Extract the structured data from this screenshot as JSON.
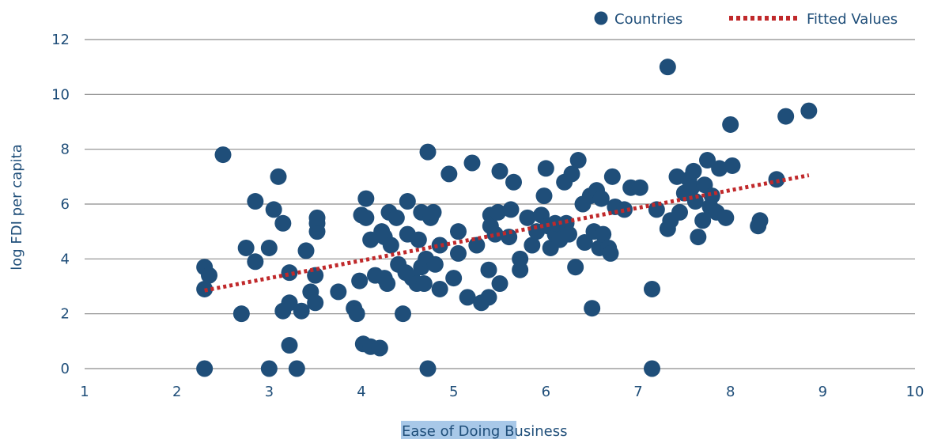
{
  "chart_data": {
    "type": "scatter",
    "title": "",
    "xlabel": "Ease of Doing Business",
    "ylabel": "log FDI per capita",
    "xlim": [
      1,
      10
    ],
    "ylim": [
      0,
      12
    ],
    "xticks": [
      "1",
      "2",
      "3",
      "4",
      "5",
      "6",
      "7",
      "8",
      "9",
      "10"
    ],
    "yticks": [
      "0",
      "2",
      "4",
      "6",
      "8",
      "10",
      "12"
    ],
    "grid": "horizontal",
    "legend_position": "top-right",
    "colors": {
      "points": "#1f4e79",
      "fit": "#c0292b",
      "grid": "#8c8c8c",
      "text": "#1f4e79",
      "highlight": "#a8c8e8"
    },
    "series": [
      {
        "name": "Countries",
        "points": [
          [
            2.3,
            0.0
          ],
          [
            2.3,
            2.9
          ],
          [
            2.3,
            3.7
          ],
          [
            2.35,
            3.4
          ],
          [
            2.5,
            7.8
          ],
          [
            2.7,
            2.0
          ],
          [
            2.75,
            4.4
          ],
          [
            2.85,
            3.9
          ],
          [
            2.85,
            6.1
          ],
          [
            3.0,
            0.0
          ],
          [
            3.0,
            4.4
          ],
          [
            3.05,
            5.8
          ],
          [
            3.1,
            7.0
          ],
          [
            3.15,
            5.3
          ],
          [
            3.15,
            2.1
          ],
          [
            3.22,
            2.4
          ],
          [
            3.22,
            3.5
          ],
          [
            3.22,
            0.85
          ],
          [
            3.3,
            0.0
          ],
          [
            3.35,
            2.1
          ],
          [
            3.4,
            4.3
          ],
          [
            3.45,
            2.8
          ],
          [
            3.5,
            3.4
          ],
          [
            3.5,
            2.4
          ],
          [
            3.52,
            5.0
          ],
          [
            3.52,
            5.3
          ],
          [
            3.52,
            5.5
          ],
          [
            3.75,
            2.8
          ],
          [
            3.92,
            2.2
          ],
          [
            3.95,
            2.0
          ],
          [
            3.98,
            3.2
          ],
          [
            4.0,
            5.6
          ],
          [
            4.02,
            0.9
          ],
          [
            4.05,
            6.2
          ],
          [
            4.05,
            5.5
          ],
          [
            4.1,
            0.8
          ],
          [
            4.1,
            4.7
          ],
          [
            4.15,
            3.4
          ],
          [
            4.2,
            0.75
          ],
          [
            4.22,
            5.0
          ],
          [
            4.25,
            4.8
          ],
          [
            4.25,
            3.3
          ],
          [
            4.28,
            3.1
          ],
          [
            4.3,
            5.7
          ],
          [
            4.32,
            4.5
          ],
          [
            4.38,
            5.5
          ],
          [
            4.4,
            3.8
          ],
          [
            4.45,
            2.0
          ],
          [
            4.48,
            3.5
          ],
          [
            4.5,
            4.9
          ],
          [
            4.5,
            6.1
          ],
          [
            4.55,
            3.3
          ],
          [
            4.6,
            3.1
          ],
          [
            4.62,
            4.7
          ],
          [
            4.65,
            3.7
          ],
          [
            4.65,
            5.7
          ],
          [
            4.68,
            3.1
          ],
          [
            4.7,
            4.0
          ],
          [
            4.72,
            0.0
          ],
          [
            4.72,
            7.9
          ],
          [
            4.75,
            5.5
          ],
          [
            4.78,
            5.7
          ],
          [
            4.8,
            3.8
          ],
          [
            4.85,
            2.9
          ],
          [
            4.85,
            4.5
          ],
          [
            4.95,
            7.1
          ],
          [
            5.0,
            3.3
          ],
          [
            5.05,
            5.0
          ],
          [
            5.05,
            4.2
          ],
          [
            5.15,
            2.6
          ],
          [
            5.2,
            7.5
          ],
          [
            5.25,
            4.5
          ],
          [
            5.3,
            2.4
          ],
          [
            5.38,
            2.6
          ],
          [
            5.38,
            3.6
          ],
          [
            5.4,
            5.6
          ],
          [
            5.4,
            5.2
          ],
          [
            5.45,
            4.9
          ],
          [
            5.48,
            5.7
          ],
          [
            5.5,
            3.1
          ],
          [
            5.5,
            7.2
          ],
          [
            5.6,
            4.8
          ],
          [
            5.62,
            5.8
          ],
          [
            5.65,
            6.8
          ],
          [
            5.72,
            3.6
          ],
          [
            5.72,
            4.0
          ],
          [
            5.8,
            5.5
          ],
          [
            5.85,
            4.5
          ],
          [
            5.9,
            5.0
          ],
          [
            5.95,
            5.6
          ],
          [
            5.98,
            6.3
          ],
          [
            6.0,
            7.3
          ],
          [
            6.02,
            5.2
          ],
          [
            6.05,
            4.4
          ],
          [
            6.1,
            4.9
          ],
          [
            6.1,
            5.3
          ],
          [
            6.15,
            4.7
          ],
          [
            6.2,
            6.8
          ],
          [
            6.22,
            5.3
          ],
          [
            6.25,
            4.9
          ],
          [
            6.28,
            7.1
          ],
          [
            6.32,
            3.7
          ],
          [
            6.35,
            7.6
          ],
          [
            6.4,
            6.0
          ],
          [
            6.42,
            4.6
          ],
          [
            6.48,
            6.3
          ],
          [
            6.5,
            2.2
          ],
          [
            6.52,
            5.0
          ],
          [
            6.55,
            6.5
          ],
          [
            6.58,
            4.4
          ],
          [
            6.6,
            6.2
          ],
          [
            6.62,
            4.9
          ],
          [
            6.68,
            4.4
          ],
          [
            6.7,
            4.2
          ],
          [
            6.72,
            7.0
          ],
          [
            6.75,
            5.9
          ],
          [
            6.85,
            5.8
          ],
          [
            6.92,
            6.6
          ],
          [
            7.02,
            6.6
          ],
          [
            7.15,
            2.9
          ],
          [
            7.15,
            0.0
          ],
          [
            7.2,
            5.8
          ],
          [
            7.32,
            11.0
          ],
          [
            7.32,
            5.1
          ],
          [
            7.35,
            5.4
          ],
          [
            7.42,
            7.0
          ],
          [
            7.45,
            5.7
          ],
          [
            7.5,
            6.4
          ],
          [
            7.55,
            6.9
          ],
          [
            7.58,
            6.6
          ],
          [
            7.6,
            7.2
          ],
          [
            7.62,
            6.1
          ],
          [
            7.65,
            4.8
          ],
          [
            7.7,
            5.4
          ],
          [
            7.72,
            6.7
          ],
          [
            7.75,
            7.6
          ],
          [
            7.78,
            5.9
          ],
          [
            7.8,
            6.3
          ],
          [
            7.85,
            5.7
          ],
          [
            7.88,
            7.3
          ],
          [
            7.95,
            5.5
          ],
          [
            8.0,
            8.9
          ],
          [
            8.02,
            7.4
          ],
          [
            8.3,
            5.2
          ],
          [
            8.32,
            5.4
          ],
          [
            8.5,
            6.9
          ],
          [
            8.6,
            9.2
          ],
          [
            8.85,
            9.4
          ]
        ]
      },
      {
        "name": "Fitted Values",
        "line": [
          [
            2.3,
            2.85
          ],
          [
            8.85,
            7.05
          ]
        ]
      }
    ]
  }
}
